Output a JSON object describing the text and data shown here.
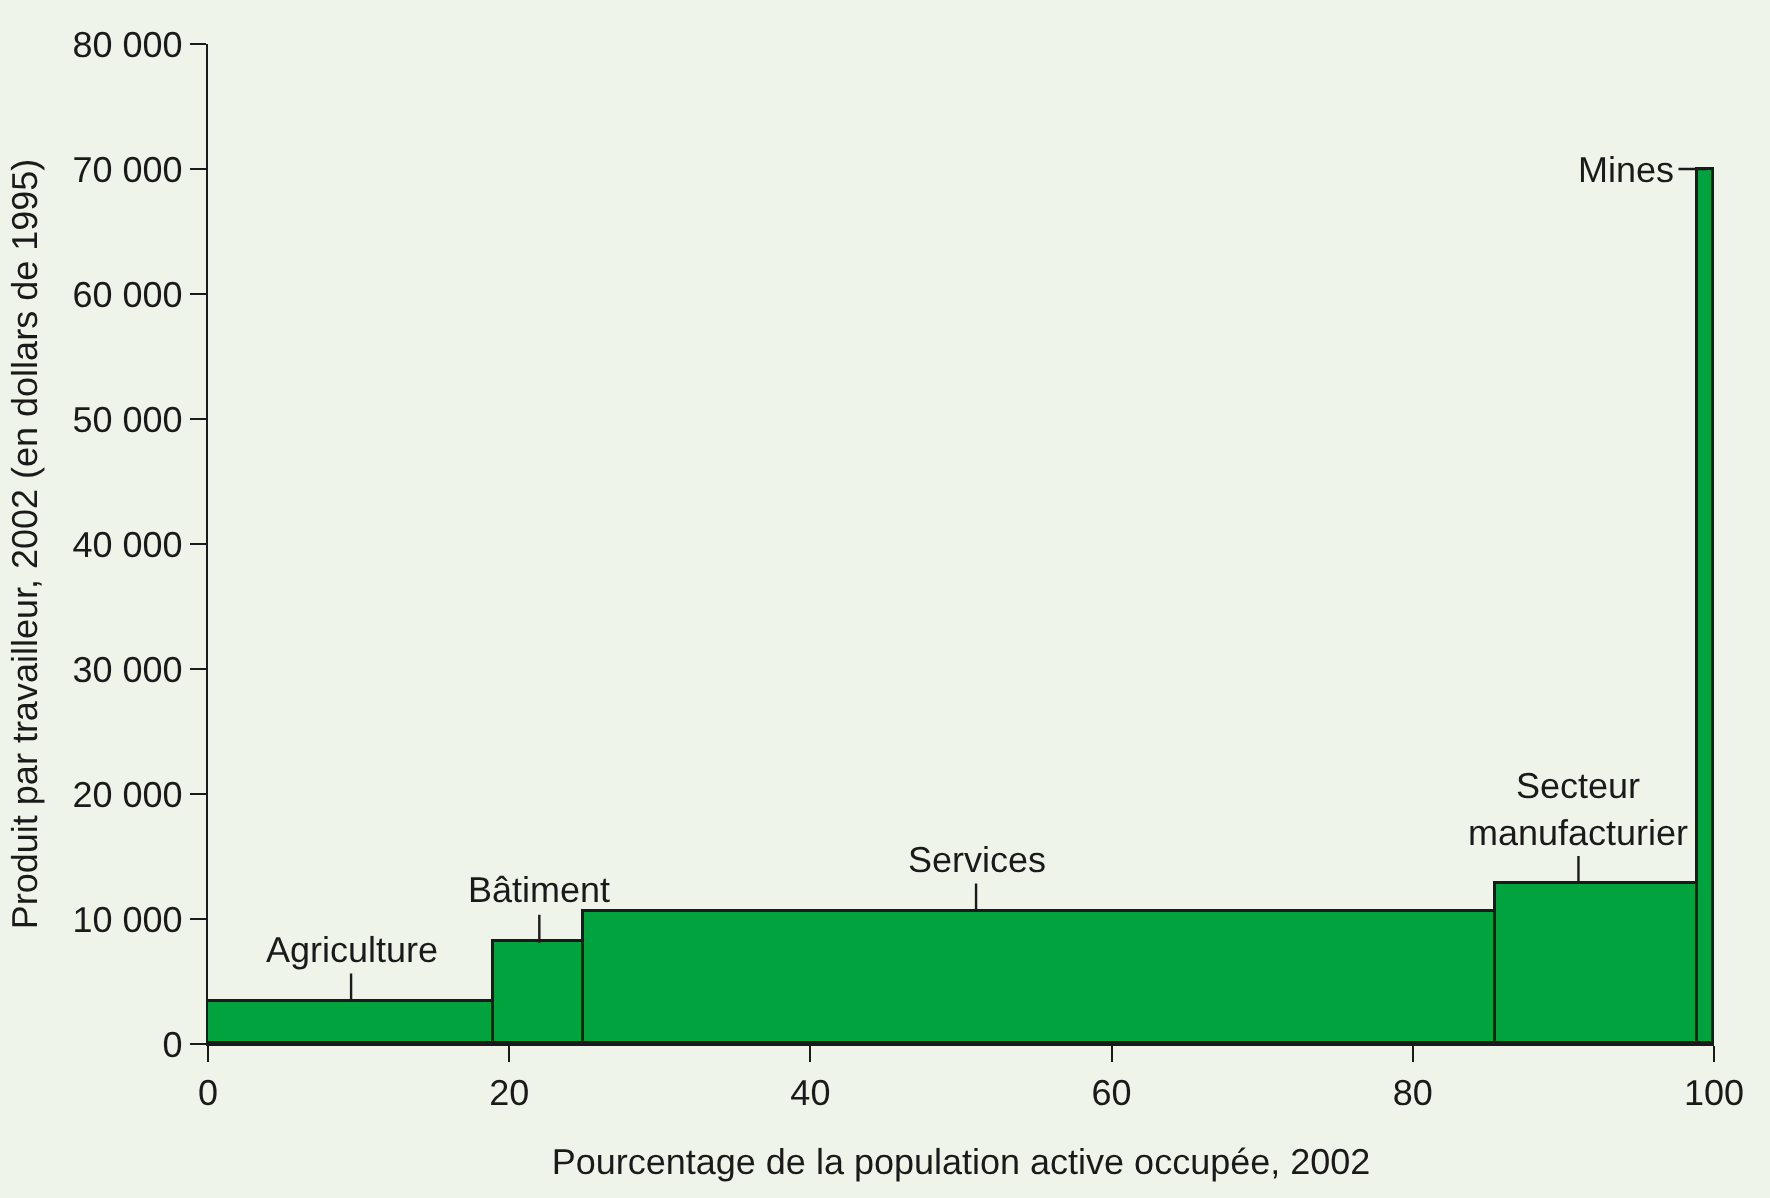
{
  "chart_data": {
    "type": "histogram",
    "xlabel": "Pourcentage de la population active occupée, 2002",
    "ylabel": "Produit par travailleur, 2002 (en dollars de 1995)",
    "bins": [
      0,
      19,
      25,
      85.5,
      99,
      100
    ],
    "values": [
      3400,
      8100,
      10600,
      12800,
      70000
    ],
    "color": "#00a33d",
    "xlim": [
      0,
      100
    ],
    "xticks": [
      0,
      20,
      40,
      60,
      80,
      100
    ],
    "ylim": [
      0,
      80000
    ],
    "yticks": [
      {
        "value": 0,
        "label": "0"
      },
      {
        "value": 10000,
        "label": "10 000"
      },
      {
        "value": 20000,
        "label": "20 000"
      },
      {
        "value": 30000,
        "label": "30 000"
      },
      {
        "value": 40000,
        "label": "40 000"
      },
      {
        "value": 50000,
        "label": "50 000"
      },
      {
        "value": 60000,
        "label": "60 000"
      },
      {
        "value": 70000,
        "label": "70 000"
      },
      {
        "value": 80000,
        "label": "80 000"
      }
    ],
    "grid": false,
    "annotations": [
      {
        "text": "Agriculture",
        "x": 9.5,
        "y": 3400
      },
      {
        "text": "Bâtiment",
        "x": 22,
        "y": 8100
      },
      {
        "text": "Services",
        "x": 51,
        "y": 10600
      },
      {
        "text": "Secteur\nmanufacturier",
        "x": 91,
        "y": 12800
      },
      {
        "text": "Mines",
        "x": 99.5,
        "y": 70000
      }
    ]
  }
}
